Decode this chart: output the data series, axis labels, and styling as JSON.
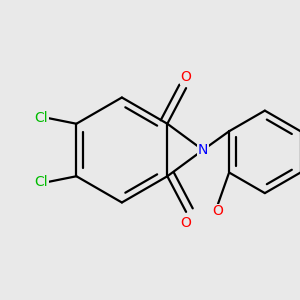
{
  "bg_color": "#e9e9e9",
  "bond_color": "#000000",
  "bond_width": 1.6,
  "atom_colors": {
    "Cl": "#00bb00",
    "O": "#ff0000",
    "N": "#0000ff",
    "C": "#000000"
  },
  "font_size": 10,
  "small_font_size": 9
}
